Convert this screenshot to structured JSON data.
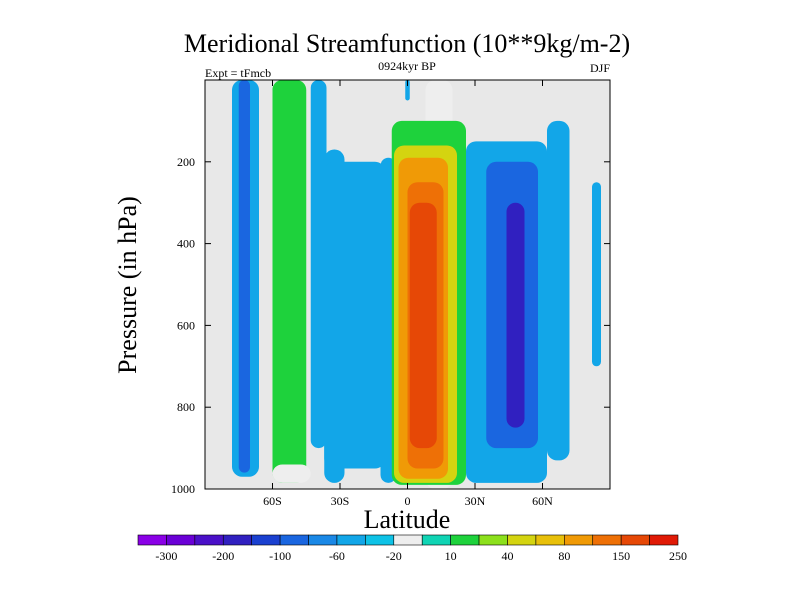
{
  "chart_data": {
    "type": "heatmap",
    "title": "Meridional Streamfunction (10**9kg/m-2)",
    "subtitle_left": "Expt = tFmcb",
    "subtitle_center": "0924kyr BP",
    "subtitle_right": "DJF",
    "xlabel": "Latitude",
    "ylabel": "Pressure (in hPa)",
    "xlim": [
      -90,
      90
    ],
    "ylim": [
      1000,
      0
    ],
    "xticks": [
      {
        "value": -60,
        "label": "60S"
      },
      {
        "value": -30,
        "label": "30S"
      },
      {
        "value": 0,
        "label": "0"
      },
      {
        "value": 30,
        "label": "30N"
      },
      {
        "value": 60,
        "label": "60N"
      }
    ],
    "yticks": [
      {
        "value": 200,
        "label": "200"
      },
      {
        "value": 400,
        "label": "400"
      },
      {
        "value": 600,
        "label": "600"
      },
      {
        "value": 800,
        "label": "800"
      },
      {
        "value": 1000,
        "label": "1000"
      }
    ],
    "colorbar": {
      "colors": [
        "#8a00e6",
        "#6a00d6",
        "#4a10c8",
        "#3020c0",
        "#1a40d0",
        "#1a66e0",
        "#1a88e6",
        "#12a6e8",
        "#0ec2e6",
        "#eeeeee",
        "#10d4b4",
        "#1ed23c",
        "#8ce01c",
        "#d4d410",
        "#e8c00a",
        "#f09a06",
        "#ee7006",
        "#e64806",
        "#e01a06"
      ],
      "labels": [
        "-300",
        "-200",
        "-100",
        "-60",
        "-20",
        "10",
        "40",
        "80",
        "150",
        "250"
      ]
    },
    "cells": [
      {
        "lat": [
          -78,
          -66
        ],
        "p": [
          0,
          970
        ],
        "value": -20
      },
      {
        "lat": [
          -75,
          -70
        ],
        "p": [
          0,
          960
        ],
        "value": -60
      },
      {
        "lat": [
          -60,
          -45
        ],
        "p": [
          0,
          985
        ],
        "value": 40
      },
      {
        "lat": [
          -60,
          -48
        ],
        "p": [
          0,
          940
        ],
        "value": 40
      },
      {
        "lat": [
          -60,
          -43
        ],
        "p": [
          940,
          985
        ],
        "value": 10
      },
      {
        "lat": [
          -43,
          -36
        ],
        "p": [
          0,
          900
        ],
        "value": -20
      },
      {
        "lat": [
          -37,
          -28
        ],
        "p": [
          170,
          985
        ],
        "value": -20
      },
      {
        "lat": [
          -37,
          -10
        ],
        "p": [
          200,
          950
        ],
        "value": -20
      },
      {
        "lat": [
          -12,
          -5
        ],
        "p": [
          190,
          985
        ],
        "value": -20
      },
      {
        "lat": [
          -1,
          1
        ],
        "p": [
          0,
          50
        ],
        "value": -20
      },
      {
        "lat": [
          8,
          20
        ],
        "p": [
          0,
          1000
        ],
        "value": 10
      },
      {
        "lat": [
          -7,
          26
        ],
        "p": [
          100,
          990
        ],
        "value": 40
      },
      {
        "lat": [
          -6,
          22
        ],
        "p": [
          160,
          985
        ],
        "value": 80
      },
      {
        "lat": [
          -4,
          18
        ],
        "p": [
          190,
          975
        ],
        "value": 150
      },
      {
        "lat": [
          0,
          16
        ],
        "p": [
          250,
          950
        ],
        "value": 200
      },
      {
        "lat": [
          1,
          13
        ],
        "p": [
          300,
          900
        ],
        "value": 250
      },
      {
        "lat": [
          26,
          62
        ],
        "p": [
          150,
          985
        ],
        "value": -20
      },
      {
        "lat": [
          35,
          58
        ],
        "p": [
          200,
          900
        ],
        "value": -60
      },
      {
        "lat": [
          44,
          52
        ],
        "p": [
          300,
          850
        ],
        "value": -100
      },
      {
        "lat": [
          62,
          72
        ],
        "p": [
          100,
          930
        ],
        "value": -20
      },
      {
        "lat": [
          82,
          86
        ],
        "p": [
          250,
          700
        ],
        "value": -20
      }
    ]
  }
}
